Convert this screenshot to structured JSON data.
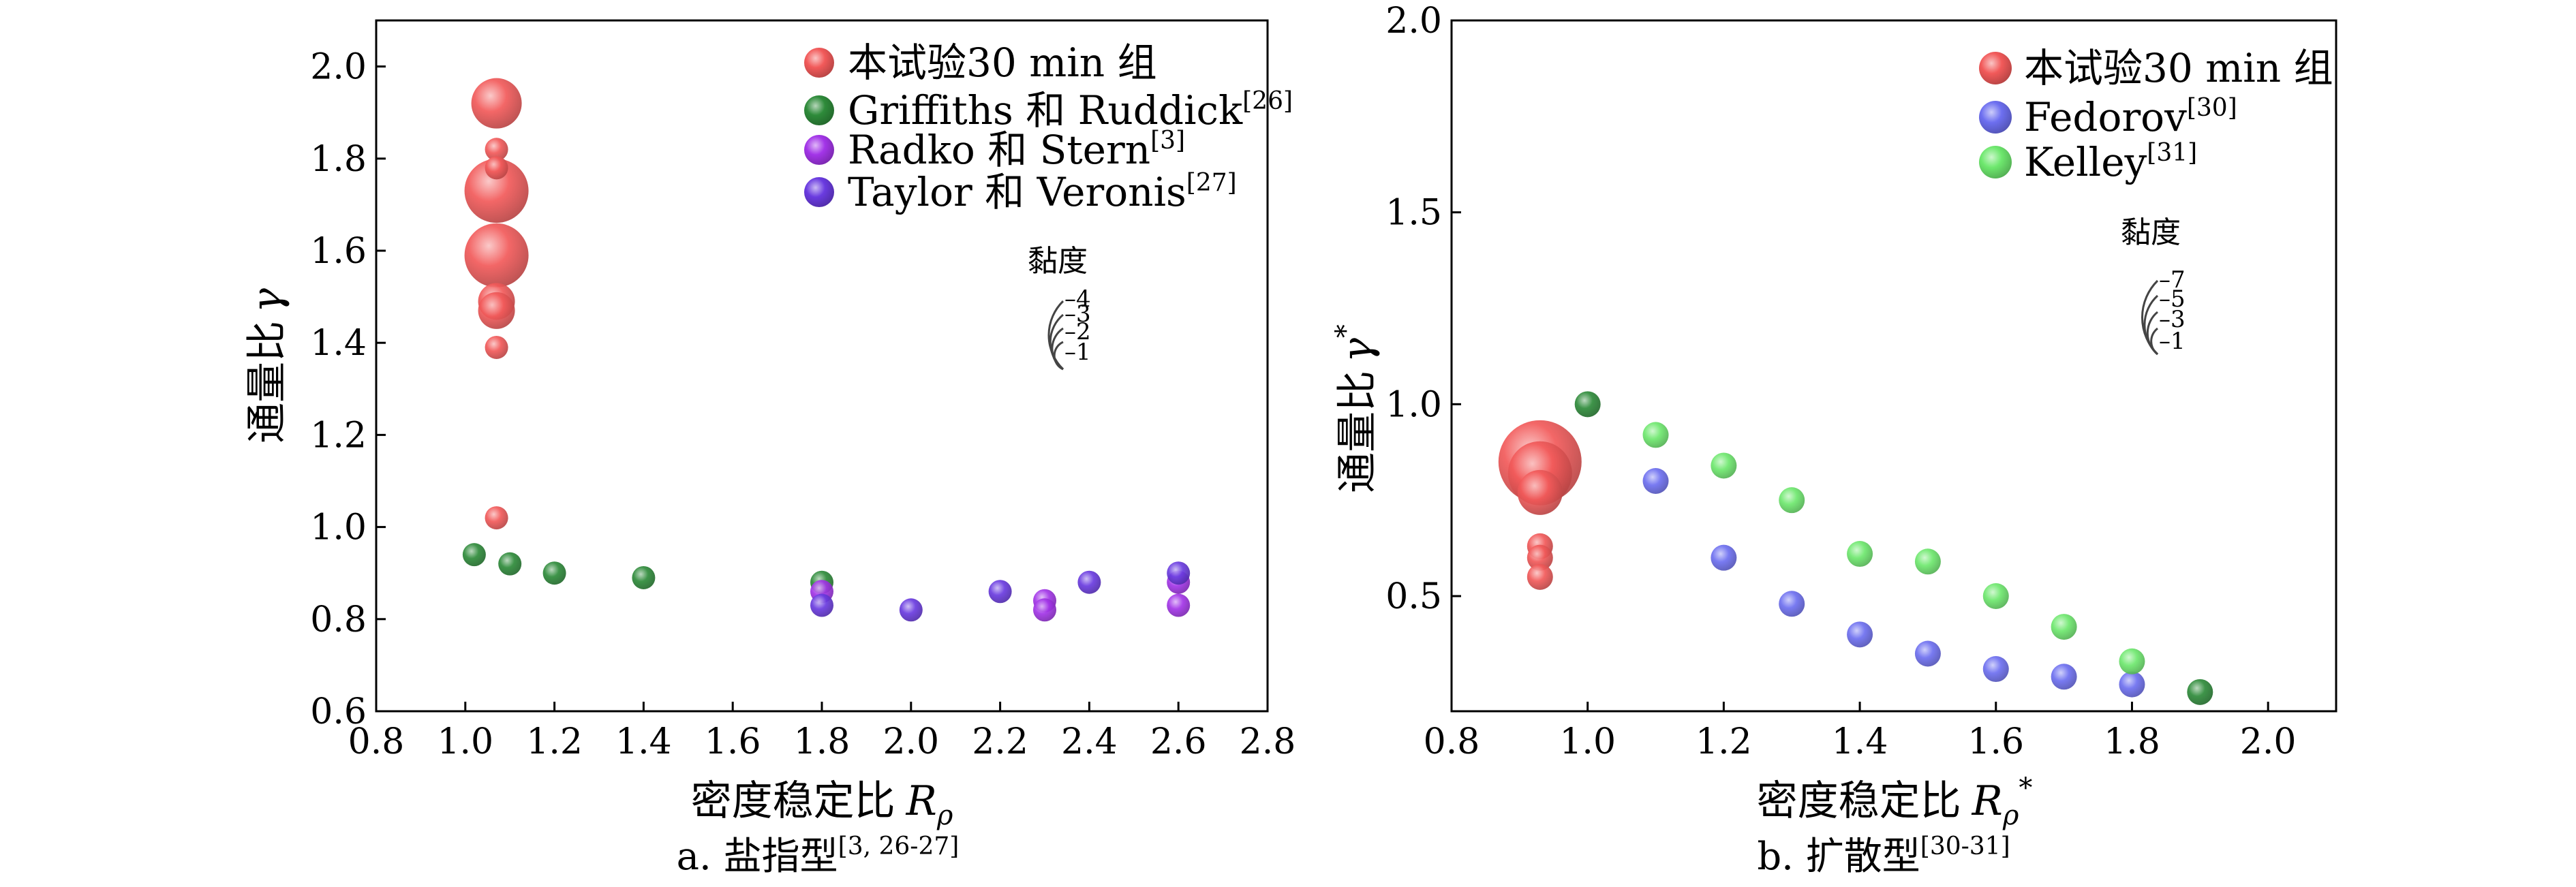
{
  "charts": [
    {
      "caption": "a. 盐指型",
      "caption_ref": "[3, 26-27]",
      "xlabel": "密度稳定比",
      "xlabel_symbol": "R",
      "xlabel_sub": "ρ",
      "xlabel_sup": "",
      "ylabel": "通量比",
      "ylabel_symbol": "γ",
      "ylabel_sup": "",
      "x_ticks": [
        "0.8",
        "1.0",
        "1.2",
        "1.4",
        "1.6",
        "1.8",
        "2.0",
        "2.2",
        "2.4",
        "2.6",
        "2.8"
      ],
      "y_ticks": [
        "0.6",
        "0.8",
        "1.0",
        "1.2",
        "1.4",
        "1.6",
        "1.8",
        "2.0"
      ],
      "legend": [
        {
          "label": "本试验30 min 组",
          "ref": ""
        },
        {
          "label": "Griffiths 和 Ruddick",
          "ref": "[26]"
        },
        {
          "label": "Radko 和 Stern",
          "ref": "[3]"
        },
        {
          "label": "Taylor 和 Veronis",
          "ref": "[27]"
        }
      ],
      "viscosity_title": "黏度",
      "viscosity_labels": [
        "4",
        "3",
        "2",
        "1"
      ]
    },
    {
      "caption": "b. 扩散型",
      "caption_ref": "[30-31]",
      "xlabel": "密度稳定比",
      "xlabel_symbol": "R",
      "xlabel_sub": "ρ",
      "xlabel_sup": "*",
      "ylabel": "通量比",
      "ylabel_symbol": "γ",
      "ylabel_sup": "*",
      "x_ticks": [
        "0.8",
        "1.0",
        "1.2",
        "1.4",
        "1.6",
        "1.8",
        "2.0"
      ],
      "y_ticks": [
        "0.5",
        "1.0",
        "1.5",
        "2.0"
      ],
      "legend": [
        {
          "label": "本试验30 min 组",
          "ref": ""
        },
        {
          "label": "Fedorov",
          "ref": "[30]"
        },
        {
          "label": "Kelley",
          "ref": "[31]"
        }
      ],
      "viscosity_title": "黏度",
      "viscosity_labels": [
        "7",
        "5",
        "3",
        "1"
      ]
    }
  ],
  "chart_data": [
    {
      "type": "scatter",
      "xlim": [
        0.8,
        2.8
      ],
      "ylim": [
        0.6,
        2.1
      ],
      "legend_position": "top-right",
      "series": [
        {
          "name": "本试验30 min 组",
          "color": "#f25a5a",
          "points": [
            {
              "x": 1.07,
              "y": 1.92,
              "size": 3
            },
            {
              "x": 1.07,
              "y": 1.82,
              "size": 1
            },
            {
              "x": 1.07,
              "y": 1.78,
              "size": 1
            },
            {
              "x": 1.07,
              "y": 1.73,
              "size": 4
            },
            {
              "x": 1.07,
              "y": 1.59,
              "size": 4
            },
            {
              "x": 1.07,
              "y": 1.49,
              "size": 2
            },
            {
              "x": 1.07,
              "y": 1.47,
              "size": 2
            },
            {
              "x": 1.07,
              "y": 1.39,
              "size": 1
            },
            {
              "x": 1.07,
              "y": 1.02,
              "size": 1
            }
          ]
        },
        {
          "name": "Griffiths 和 Ruddick",
          "color": "#2e8b3a",
          "points": [
            {
              "x": 1.02,
              "y": 0.94,
              "size": 1
            },
            {
              "x": 1.1,
              "y": 0.92,
              "size": 1
            },
            {
              "x": 1.2,
              "y": 0.9,
              "size": 1
            },
            {
              "x": 1.4,
              "y": 0.89,
              "size": 1
            },
            {
              "x": 1.8,
              "y": 0.88,
              "size": 1
            }
          ]
        },
        {
          "name": "Radko 和 Stern",
          "color": "#a335e8",
          "points": [
            {
              "x": 1.8,
              "y": 0.86,
              "size": 1
            },
            {
              "x": 2.3,
              "y": 0.84,
              "size": 1
            },
            {
              "x": 2.3,
              "y": 0.82,
              "size": 1
            },
            {
              "x": 2.6,
              "y": 0.88,
              "size": 1
            },
            {
              "x": 2.6,
              "y": 0.83,
              "size": 1
            }
          ]
        },
        {
          "name": "Taylor 和 Veronis",
          "color": "#6a3be0",
          "points": [
            {
              "x": 1.8,
              "y": 0.83,
              "size": 1
            },
            {
              "x": 2.0,
              "y": 0.82,
              "size": 1
            },
            {
              "x": 2.2,
              "y": 0.86,
              "size": 1
            },
            {
              "x": 2.4,
              "y": 0.88,
              "size": 1
            },
            {
              "x": 2.6,
              "y": 0.9,
              "size": 1
            }
          ]
        }
      ]
    },
    {
      "type": "scatter",
      "xlim": [
        0.8,
        2.1
      ],
      "ylim": [
        0.2,
        2.0
      ],
      "legend_position": "top-right",
      "series": [
        {
          "name": "本试验30 min 组",
          "color": "#f25a5a",
          "points": [
            {
              "x": 0.93,
              "y": 0.85,
              "size": 7
            },
            {
              "x": 0.93,
              "y": 0.82,
              "size": 5
            },
            {
              "x": 0.93,
              "y": 0.77,
              "size": 3
            },
            {
              "x": 0.93,
              "y": 0.63,
              "size": 1
            },
            {
              "x": 0.93,
              "y": 0.6,
              "size": 1
            },
            {
              "x": 0.93,
              "y": 0.55,
              "size": 1
            }
          ]
        },
        {
          "name": "Fedorov",
          "color": "#6d6ff0",
          "points": [
            {
              "x": 1.1,
              "y": 0.8,
              "size": 1
            },
            {
              "x": 1.2,
              "y": 0.6,
              "size": 1
            },
            {
              "x": 1.3,
              "y": 0.48,
              "size": 1
            },
            {
              "x": 1.4,
              "y": 0.4,
              "size": 1
            },
            {
              "x": 1.5,
              "y": 0.35,
              "size": 1
            },
            {
              "x": 1.6,
              "y": 0.31,
              "size": 1
            },
            {
              "x": 1.7,
              "y": 0.29,
              "size": 1
            },
            {
              "x": 1.8,
              "y": 0.27,
              "size": 1
            }
          ]
        },
        {
          "name": "Kelley",
          "color": "#6ee86e",
          "points": [
            {
              "x": 1.1,
              "y": 0.92,
              "size": 1
            },
            {
              "x": 1.2,
              "y": 0.84,
              "size": 1
            },
            {
              "x": 1.3,
              "y": 0.75,
              "size": 1
            },
            {
              "x": 1.4,
              "y": 0.61,
              "size": 1
            },
            {
              "x": 1.5,
              "y": 0.59,
              "size": 1
            },
            {
              "x": 1.6,
              "y": 0.5,
              "size": 1
            },
            {
              "x": 1.7,
              "y": 0.42,
              "size": 1
            },
            {
              "x": 1.8,
              "y": 0.33,
              "size": 1
            }
          ]
        },
        {
          "name": "",
          "color": "#2e8b3a",
          "points": [
            {
              "x": 1.0,
              "y": 1.0,
              "size": 1
            },
            {
              "x": 1.9,
              "y": 0.25,
              "size": 1
            }
          ]
        }
      ]
    }
  ]
}
